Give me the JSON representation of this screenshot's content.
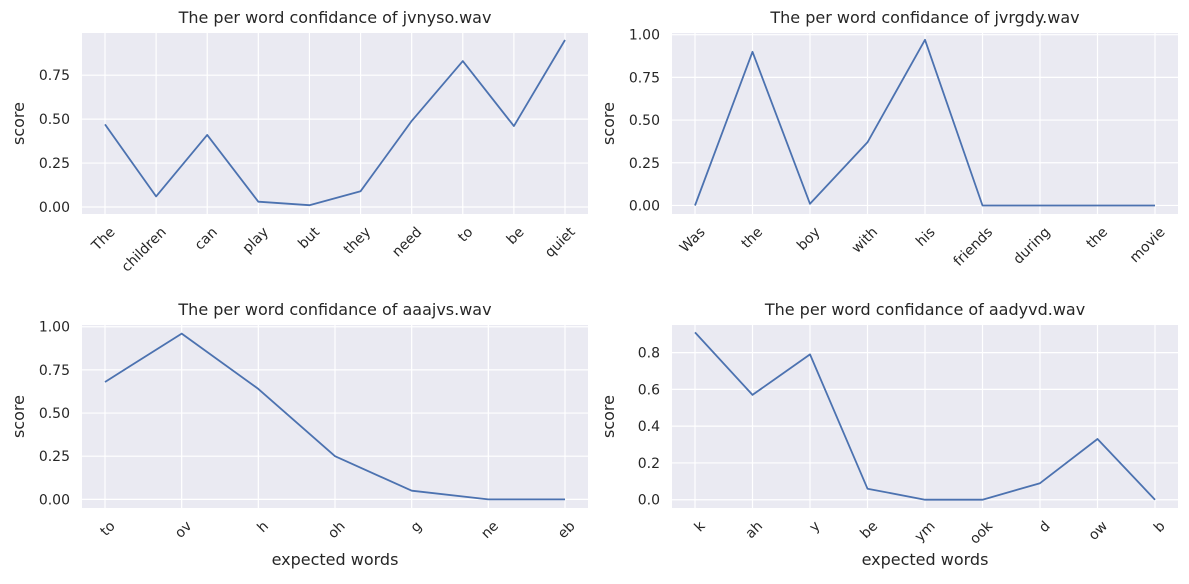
{
  "chart_data": [
    {
      "type": "line",
      "title": "The per word confidance of jvnyso.wav",
      "xlabel": "",
      "ylabel": "score",
      "categories": [
        "The",
        "children",
        "can",
        "play",
        "but",
        "they",
        "need",
        "to",
        "be",
        "quiet"
      ],
      "values": [
        0.47,
        0.06,
        0.41,
        0.03,
        0.01,
        0.09,
        0.49,
        0.83,
        0.46,
        0.95
      ],
      "yticks": [
        0.0,
        0.25,
        0.5,
        0.75
      ],
      "ytick_labels": [
        "0.00",
        "0.25",
        "0.50",
        "0.75"
      ],
      "ylim": [
        -0.04,
        0.99
      ],
      "grid": true,
      "line_color": "#4c72b0"
    },
    {
      "type": "line",
      "title": "The per word confidance of jvrgdy.wav",
      "xlabel": "",
      "ylabel": "score",
      "categories": [
        "Was",
        "the",
        "boy",
        "with",
        "his",
        "friends",
        "during",
        "the",
        "movie"
      ],
      "values": [
        0.0,
        0.9,
        0.01,
        0.37,
        0.97,
        0.0,
        0.0,
        0.0,
        0.0
      ],
      "yticks": [
        0.0,
        0.25,
        0.5,
        0.75,
        1.0
      ],
      "ytick_labels": [
        "0.00",
        "0.25",
        "0.50",
        "0.75",
        "1.00"
      ],
      "ylim": [
        -0.05,
        1.01
      ],
      "grid": true,
      "line_color": "#4c72b0"
    },
    {
      "type": "line",
      "title": "The per word confidance of aaajvs.wav",
      "xlabel": "expected words",
      "ylabel": "score",
      "categories": [
        "to",
        "ov",
        "h",
        "oh",
        "g",
        "ne",
        "eb"
      ],
      "values": [
        0.68,
        0.96,
        0.64,
        0.25,
        0.05,
        0.0,
        0.0
      ],
      "yticks": [
        0.0,
        0.25,
        0.5,
        0.75,
        1.0
      ],
      "ytick_labels": [
        "0.00",
        "0.25",
        "0.50",
        "0.75",
        "1.00"
      ],
      "ylim": [
        -0.05,
        1.01
      ],
      "grid": true,
      "line_color": "#4c72b0"
    },
    {
      "type": "line",
      "title": "The per word confidance of aadyvd.wav",
      "xlabel": "expected words",
      "ylabel": "score",
      "categories": [
        "k",
        "ah",
        "y",
        "be",
        "ym",
        "ook",
        "d",
        "ow",
        "b"
      ],
      "values": [
        0.91,
        0.57,
        0.79,
        0.06,
        0.0,
        0.0,
        0.09,
        0.33,
        0.0
      ],
      "yticks": [
        0.0,
        0.2,
        0.4,
        0.6,
        0.8
      ],
      "ytick_labels": [
        "0.0",
        "0.2",
        "0.4",
        "0.6",
        "0.8"
      ],
      "ylim": [
        -0.045,
        0.95
      ],
      "grid": true,
      "line_color": "#4c72b0"
    }
  ]
}
